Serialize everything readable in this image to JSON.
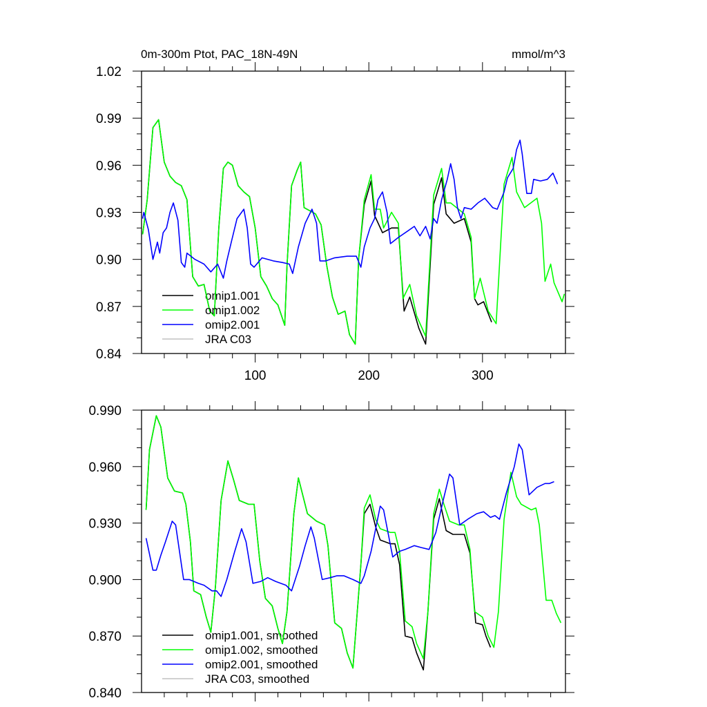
{
  "chart_data": [
    {
      "type": "line",
      "title_left": "0m-300m Ptot, PAC_18N-49N",
      "title_right": "mmol/m^3",
      "xlim": [
        0,
        373
      ],
      "ylim": [
        0.84,
        1.02
      ],
      "x_ticks": [
        100,
        200,
        300
      ],
      "x_tick_labels": [
        "100",
        "200",
        "300"
      ],
      "y_ticks": [
        0.84,
        0.87,
        0.9,
        0.93,
        0.96,
        0.99,
        1.02
      ],
      "y_tick_labels": [
        "0.84",
        "0.87",
        "0.90",
        "0.93",
        "0.96",
        "0.99",
        "1.02"
      ],
      "grid": false,
      "legend_placement": "bottom-left",
      "series": [
        {
          "name": "omip1.001",
          "color": "#000000",
          "x": [
            1,
            5,
            10,
            15,
            20,
            25,
            30,
            35,
            40,
            45,
            50,
            55,
            60,
            64,
            68,
            72,
            76,
            80,
            85,
            90,
            95,
            100,
            105,
            110,
            115,
            120,
            126,
            128,
            132,
            137,
            140,
            143,
            148,
            153,
            158,
            163,
            168,
            173,
            179,
            183,
            188,
            191,
            196,
            202,
            205,
            212,
            220,
            226,
            231,
            236,
            244,
            250,
            257,
            264,
            268,
            275,
            284,
            290,
            293,
            296,
            301,
            308
          ],
          "y": [
            0.916,
            0.938,
            0.984,
            0.989,
            0.962,
            0.953,
            0.949,
            0.947,
            0.938,
            0.889,
            0.883,
            0.884,
            0.867,
            0.864,
            0.92,
            0.958,
            0.962,
            0.96,
            0.947,
            0.943,
            0.94,
            0.92,
            0.889,
            0.883,
            0.875,
            0.871,
            0.858,
            0.896,
            0.947,
            0.957,
            0.962,
            0.933,
            0.931,
            0.929,
            0.922,
            0.896,
            0.876,
            0.865,
            0.867,
            0.852,
            0.846,
            0.9,
            0.935,
            0.95,
            0.928,
            0.917,
            0.92,
            0.92,
            0.867,
            0.876,
            0.856,
            0.846,
            0.935,
            0.952,
            0.929,
            0.923,
            0.926,
            0.911,
            0.875,
            0.871,
            0.873,
            0.86
          ]
        },
        {
          "name": "omip1.002",
          "color": "#00ff00",
          "x": [
            1,
            5,
            10,
            15,
            20,
            25,
            30,
            35,
            40,
            45,
            50,
            55,
            60,
            64,
            68,
            72,
            76,
            80,
            85,
            90,
            95,
            100,
            105,
            110,
            115,
            120,
            126,
            128,
            132,
            137,
            140,
            143,
            148,
            153,
            158,
            163,
            168,
            173,
            179,
            183,
            188,
            191,
            196,
            202,
            205,
            210,
            213,
            220,
            226,
            230,
            236,
            242,
            250,
            257,
            264,
            268,
            272,
            284,
            290,
            293,
            298,
            305,
            312,
            319,
            326,
            330,
            337,
            348,
            352,
            355,
            360,
            363,
            370,
            372
          ],
          "y": [
            0.916,
            0.938,
            0.984,
            0.989,
            0.962,
            0.953,
            0.949,
            0.947,
            0.938,
            0.889,
            0.883,
            0.884,
            0.867,
            0.864,
            0.92,
            0.958,
            0.962,
            0.96,
            0.947,
            0.943,
            0.94,
            0.92,
            0.889,
            0.883,
            0.875,
            0.871,
            0.858,
            0.896,
            0.947,
            0.957,
            0.962,
            0.933,
            0.931,
            0.929,
            0.922,
            0.896,
            0.876,
            0.865,
            0.867,
            0.852,
            0.846,
            0.9,
            0.938,
            0.954,
            0.932,
            0.932,
            0.92,
            0.93,
            0.923,
            0.875,
            0.884,
            0.864,
            0.851,
            0.941,
            0.958,
            0.936,
            0.936,
            0.929,
            0.914,
            0.875,
            0.888,
            0.867,
            0.859,
            0.948,
            0.965,
            0.943,
            0.933,
            0.939,
            0.923,
            0.886,
            0.897,
            0.885,
            0.873,
            0.878
          ]
        },
        {
          "name": "omip2.001",
          "color": "#0000ff",
          "x": [
            1,
            2,
            6,
            10,
            14,
            16,
            19,
            22,
            25,
            28,
            32,
            35,
            38,
            40,
            47,
            55,
            61,
            67,
            72,
            75,
            79,
            84,
            90,
            93,
            96,
            99,
            106,
            116,
            124,
            130,
            133,
            138,
            144,
            150,
            154,
            157,
            162,
            170,
            181,
            189,
            193,
            196,
            201,
            205,
            208,
            212,
            216,
            219,
            226,
            234,
            240,
            245,
            250,
            254,
            257,
            260,
            264,
            269,
            272,
            275,
            278,
            281,
            284,
            290,
            296,
            302,
            309,
            313,
            319,
            322,
            327,
            330,
            333,
            335,
            339,
            343,
            345,
            351,
            357,
            362,
            366
          ],
          "y": [
            0.926,
            0.93,
            0.919,
            0.9,
            0.911,
            0.904,
            0.917,
            0.92,
            0.93,
            0.936,
            0.925,
            0.898,
            0.895,
            0.904,
            0.9,
            0.897,
            0.892,
            0.897,
            0.888,
            0.899,
            0.911,
            0.926,
            0.932,
            0.92,
            0.897,
            0.895,
            0.901,
            0.899,
            0.898,
            0.897,
            0.891,
            0.908,
            0.923,
            0.932,
            0.923,
            0.899,
            0.899,
            0.901,
            0.902,
            0.902,
            0.895,
            0.908,
            0.92,
            0.926,
            0.938,
            0.943,
            0.93,
            0.91,
            0.914,
            0.918,
            0.921,
            0.915,
            0.921,
            0.913,
            0.926,
            0.923,
            0.938,
            0.951,
            0.961,
            0.951,
            0.933,
            0.926,
            0.933,
            0.932,
            0.936,
            0.939,
            0.933,
            0.932,
            0.943,
            0.952,
            0.958,
            0.97,
            0.976,
            0.967,
            0.942,
            0.942,
            0.951,
            0.95,
            0.951,
            0.955,
            0.948
          ]
        },
        {
          "name": "JRA C03",
          "color": "#c0c0c0",
          "x": [],
          "y": []
        }
      ]
    },
    {
      "type": "line",
      "xlim": [
        0,
        373
      ],
      "ylim": [
        0.84,
        0.99
      ],
      "x_ticks": [
        100,
        200,
        300
      ],
      "y_ticks": [
        0.84,
        0.87,
        0.9,
        0.93,
        0.96,
        0.99
      ],
      "y_tick_labels": [
        "0.840",
        "0.870",
        "0.900",
        "0.930",
        "0.960",
        "0.990"
      ],
      "grid": false,
      "legend_placement": "bottom-left",
      "series": [
        {
          "name": "omip1.001, smoothed",
          "color": "#000000",
          "x": [
            4,
            7,
            13,
            17,
            23,
            29,
            36,
            39,
            43,
            46,
            52,
            57,
            61,
            65,
            70,
            76,
            81,
            86,
            94,
            99,
            104,
            109,
            115,
            120,
            124,
            128,
            134,
            138,
            146,
            154,
            161,
            164,
            170,
            176,
            181,
            186,
            193,
            196,
            201,
            206,
            210,
            219,
            223,
            227,
            232,
            238,
            242,
            248,
            252,
            257,
            262,
            268,
            274,
            284,
            289,
            294,
            300,
            303,
            307
          ],
          "y": [
            0.937,
            0.969,
            0.987,
            0.981,
            0.954,
            0.947,
            0.946,
            0.94,
            0.92,
            0.894,
            0.892,
            0.88,
            0.872,
            0.896,
            0.942,
            0.963,
            0.953,
            0.942,
            0.94,
            0.94,
            0.91,
            0.89,
            0.886,
            0.874,
            0.866,
            0.883,
            0.935,
            0.954,
            0.935,
            0.931,
            0.929,
            0.918,
            0.877,
            0.874,
            0.861,
            0.853,
            0.908,
            0.935,
            0.94,
            0.928,
            0.921,
            0.919,
            0.919,
            0.908,
            0.87,
            0.869,
            0.861,
            0.852,
            0.883,
            0.932,
            0.943,
            0.926,
            0.924,
            0.924,
            0.914,
            0.877,
            0.876,
            0.87,
            0.864
          ]
        },
        {
          "name": "omip1.002, smoothed",
          "color": "#00ff00",
          "x": [
            4,
            7,
            13,
            17,
            23,
            29,
            36,
            39,
            43,
            46,
            52,
            57,
            61,
            65,
            70,
            76,
            81,
            86,
            94,
            99,
            104,
            109,
            115,
            120,
            124,
            128,
            134,
            138,
            146,
            154,
            161,
            164,
            170,
            176,
            181,
            186,
            193,
            196,
            201,
            206,
            210,
            219,
            223,
            227,
            232,
            238,
            242,
            248,
            252,
            257,
            262,
            266,
            271,
            279,
            284,
            289,
            293,
            300,
            305,
            310,
            314,
            319,
            325,
            330,
            334,
            343,
            347,
            350,
            356,
            361,
            365,
            369
          ],
          "y": [
            0.937,
            0.969,
            0.987,
            0.981,
            0.954,
            0.947,
            0.946,
            0.94,
            0.92,
            0.894,
            0.892,
            0.88,
            0.872,
            0.896,
            0.942,
            0.963,
            0.953,
            0.942,
            0.94,
            0.94,
            0.91,
            0.89,
            0.886,
            0.874,
            0.866,
            0.883,
            0.935,
            0.954,
            0.935,
            0.931,
            0.929,
            0.918,
            0.877,
            0.874,
            0.861,
            0.853,
            0.908,
            0.938,
            0.945,
            0.932,
            0.927,
            0.925,
            0.925,
            0.915,
            0.878,
            0.875,
            0.866,
            0.858,
            0.883,
            0.935,
            0.948,
            0.94,
            0.931,
            0.929,
            0.929,
            0.916,
            0.883,
            0.88,
            0.87,
            0.864,
            0.883,
            0.932,
            0.957,
            0.944,
            0.94,
            0.937,
            0.938,
            0.929,
            0.889,
            0.889,
            0.882,
            0.877
          ]
        },
        {
          "name": "omip2.001, smoothed",
          "color": "#0000ff",
          "x": [
            4,
            10,
            13,
            17,
            21,
            27,
            30,
            37,
            42,
            50,
            55,
            62,
            66,
            70,
            75,
            82,
            88,
            92,
            98,
            105,
            111,
            118,
            127,
            132,
            139,
            144,
            149,
            152,
            159,
            166,
            172,
            178,
            186,
            193,
            196,
            202,
            206,
            210,
            213,
            221,
            227,
            232,
            240,
            246,
            253,
            259,
            265,
            271,
            274,
            280,
            287,
            295,
            301,
            307,
            311,
            315,
            321,
            328,
            332,
            335,
            341,
            348,
            355,
            359,
            363
          ],
          "y": [
            0.922,
            0.905,
            0.905,
            0.913,
            0.92,
            0.931,
            0.929,
            0.9,
            0.9,
            0.898,
            0.897,
            0.894,
            0.894,
            0.891,
            0.9,
            0.915,
            0.927,
            0.92,
            0.898,
            0.899,
            0.901,
            0.899,
            0.897,
            0.894,
            0.907,
            0.918,
            0.928,
            0.922,
            0.9,
            0.901,
            0.902,
            0.902,
            0.9,
            0.898,
            0.902,
            0.915,
            0.927,
            0.939,
            0.937,
            0.912,
            0.915,
            0.916,
            0.918,
            0.917,
            0.916,
            0.925,
            0.941,
            0.956,
            0.954,
            0.929,
            0.932,
            0.935,
            0.936,
            0.933,
            0.934,
            0.932,
            0.946,
            0.96,
            0.972,
            0.969,
            0.945,
            0.949,
            0.951,
            0.951,
            0.952
          ]
        },
        {
          "name": "JRA C03, smoothed",
          "color": "#c0c0c0",
          "x": [],
          "y": []
        }
      ]
    }
  ]
}
